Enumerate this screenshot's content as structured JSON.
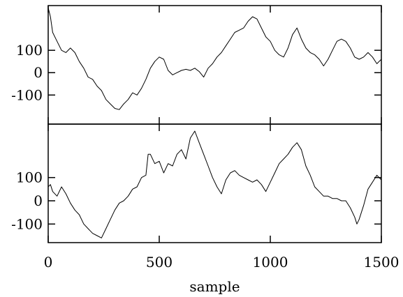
{
  "chart_data": {
    "type": "line",
    "xlabel": "sample",
    "xlim": [
      0,
      1500
    ],
    "x_ticks": [
      0,
      500,
      1000,
      1500
    ],
    "x_tick_labels": [
      "0",
      "500",
      "1000",
      "1500"
    ],
    "panels": [
      {
        "ylim": [
          -230,
          300
        ],
        "y_ticks": [
          100,
          0,
          -100
        ],
        "y_tick_labels": [
          "100",
          "0",
          "-100"
        ],
        "series": [
          {
            "line_color": "#000000",
            "x": [
              0,
              10,
              20,
              40,
              60,
              80,
              100,
              120,
              140,
              160,
              180,
              200,
              220,
              240,
              260,
              280,
              300,
              320,
              340,
              360,
              380,
              400,
              420,
              440,
              460,
              480,
              500,
              520,
              540,
              560,
              580,
              600,
              620,
              640,
              660,
              680,
              700,
              720,
              740,
              760,
              780,
              800,
              820,
              840,
              860,
              880,
              900,
              920,
              940,
              960,
              980,
              1000,
              1020,
              1040,
              1060,
              1080,
              1100,
              1120,
              1140,
              1160,
              1180,
              1200,
              1220,
              1240,
              1260,
              1280,
              1300,
              1320,
              1340,
              1360,
              1380,
              1400,
              1420,
              1440,
              1460,
              1480,
              1500
            ],
            "y": [
              290,
              250,
              180,
              140,
              100,
              90,
              110,
              90,
              50,
              20,
              -20,
              -30,
              -60,
              -80,
              -120,
              -140,
              -160,
              -165,
              -140,
              -120,
              -90,
              -100,
              -70,
              -30,
              20,
              50,
              70,
              60,
              10,
              -10,
              0,
              10,
              15,
              10,
              20,
              5,
              -20,
              20,
              40,
              70,
              90,
              120,
              150,
              180,
              190,
              200,
              230,
              250,
              240,
              200,
              160,
              140,
              100,
              80,
              70,
              110,
              170,
              200,
              150,
              110,
              90,
              80,
              60,
              30,
              60,
              100,
              140,
              150,
              140,
              110,
              70,
              60,
              70,
              90,
              70,
              40,
              60
            ]
          }
        ]
      },
      {
        "ylim": [
          -180,
          330
        ],
        "y_ticks": [
          100,
          0,
          -100
        ],
        "y_tick_labels": [
          "100",
          "0",
          "-100"
        ],
        "series": [
          {
            "line_color": "#000000",
            "x": [
              0,
              10,
              20,
              40,
              60,
              80,
              100,
              120,
              140,
              160,
              180,
              200,
              220,
              240,
              260,
              280,
              300,
              320,
              340,
              360,
              380,
              400,
              420,
              440,
              450,
              460,
              480,
              500,
              520,
              540,
              560,
              580,
              600,
              620,
              640,
              660,
              680,
              700,
              720,
              740,
              760,
              780,
              800,
              820,
              840,
              860,
              880,
              900,
              920,
              940,
              960,
              980,
              1000,
              1020,
              1040,
              1060,
              1080,
              1100,
              1120,
              1140,
              1160,
              1180,
              1200,
              1220,
              1240,
              1260,
              1280,
              1300,
              1320,
              1340,
              1360,
              1380,
              1390,
              1400,
              1420,
              1440,
              1460,
              1480,
              1500
            ],
            "y": [
              60,
              70,
              40,
              20,
              60,
              30,
              -10,
              -40,
              -60,
              -100,
              -120,
              -140,
              -150,
              -160,
              -120,
              -80,
              -40,
              -10,
              0,
              20,
              50,
              60,
              100,
              110,
              200,
              200,
              160,
              170,
              120,
              160,
              150,
              200,
              220,
              180,
              270,
              300,
              250,
              200,
              150,
              100,
              60,
              30,
              90,
              120,
              130,
              110,
              100,
              90,
              80,
              90,
              70,
              40,
              80,
              120,
              160,
              180,
              200,
              230,
              250,
              220,
              150,
              110,
              60,
              40,
              20,
              20,
              10,
              10,
              0,
              0,
              -30,
              -70,
              -100,
              -80,
              -20,
              50,
              80,
              110,
              90
            ]
          }
        ]
      }
    ]
  }
}
